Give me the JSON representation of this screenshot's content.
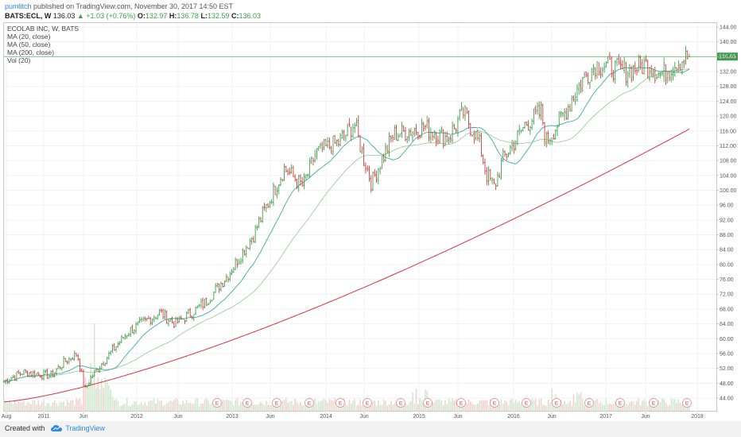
{
  "header": {
    "user": "pumlitch",
    "published": "published on TradingView.com, November 30, 2017 14:50 EST",
    "symbol": "BATS:ECL, W",
    "last": "136.03",
    "change": "▲ +1.03 (+0.76%)",
    "o_label": "O:",
    "o_value": "132.97",
    "h_label": "H:",
    "h_value": "136.78",
    "l_label": "L:",
    "l_value": "132.59",
    "c_label": "C:",
    "c_value": "136.03"
  },
  "legend": {
    "title": "ECOLAB INC, W, BATS",
    "ma20": "MA (20, close)",
    "ma50": "MA (50, close)",
    "ma200": "MA (200, close)",
    "vol": "Vol (20)"
  },
  "footer": {
    "created_with": "Created with",
    "brand": "TradingView"
  },
  "colors": {
    "up": "#3aa148",
    "down": "#d23b3b",
    "ma20": "#41a9a6",
    "ma50": "#9ccf99",
    "ma200": "#d9343a",
    "price_tag": "#3aa148",
    "accent": "#2a8be8"
  },
  "chart_data": {
    "type": "line",
    "title": "ECOLAB INC, W, BATS",
    "x_ticks": [
      "Aug",
      "2011",
      "Jun",
      "2012",
      "Jun",
      "2013",
      "Jun",
      "2014",
      "Jun",
      "2015",
      "Jun",
      "2016",
      "Jun",
      "2017",
      "Jun",
      "2018"
    ],
    "y_ticks": [
      44,
      48,
      52,
      56,
      60,
      64,
      68,
      72,
      76,
      80,
      84,
      88,
      92,
      96,
      100,
      104,
      108,
      112,
      116,
      120,
      124,
      128,
      132,
      136,
      140,
      144
    ],
    "ylim": [
      42,
      145
    ],
    "last_price": 136.03,
    "earnings_marker": "E",
    "series": [
      {
        "name": "MA (20, close)"
      },
      {
        "name": "MA (50, close)"
      },
      {
        "name": "MA (200, close)"
      }
    ]
  }
}
